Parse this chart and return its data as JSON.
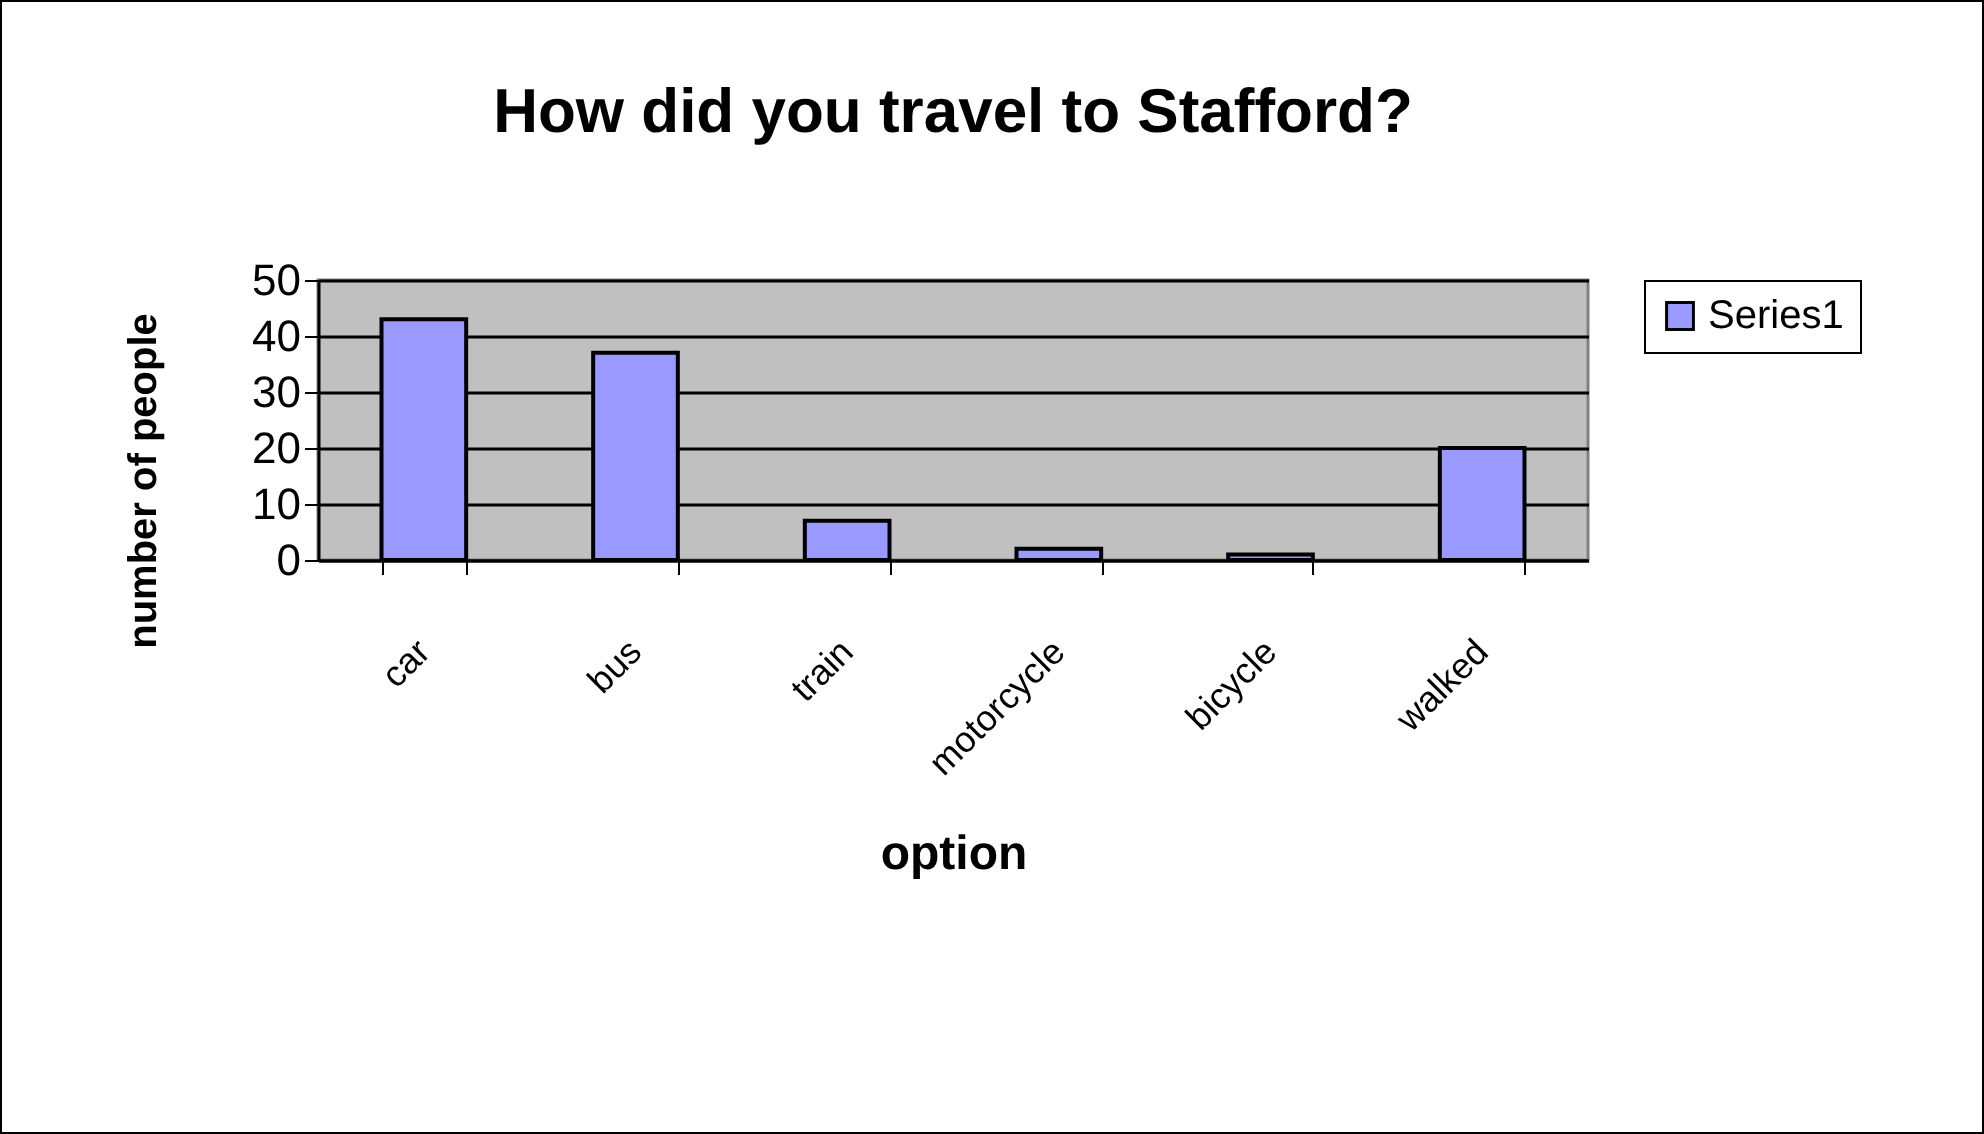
{
  "chart_data": {
    "type": "bar",
    "title": "How did you travel to Stafford?",
    "xlabel": "option",
    "ylabel": "number of people",
    "categories": [
      "car",
      "bus",
      "train",
      "motorcycle",
      "bicycle",
      "walked"
    ],
    "series": [
      {
        "name": "Series1",
        "color": "#9999ff",
        "values": [
          43,
          37,
          7,
          2,
          1,
          20
        ]
      }
    ],
    "ylim": [
      0,
      50
    ],
    "yticks": [
      0,
      10,
      20,
      30,
      40,
      50
    ],
    "grid": "y",
    "legend": "right"
  }
}
